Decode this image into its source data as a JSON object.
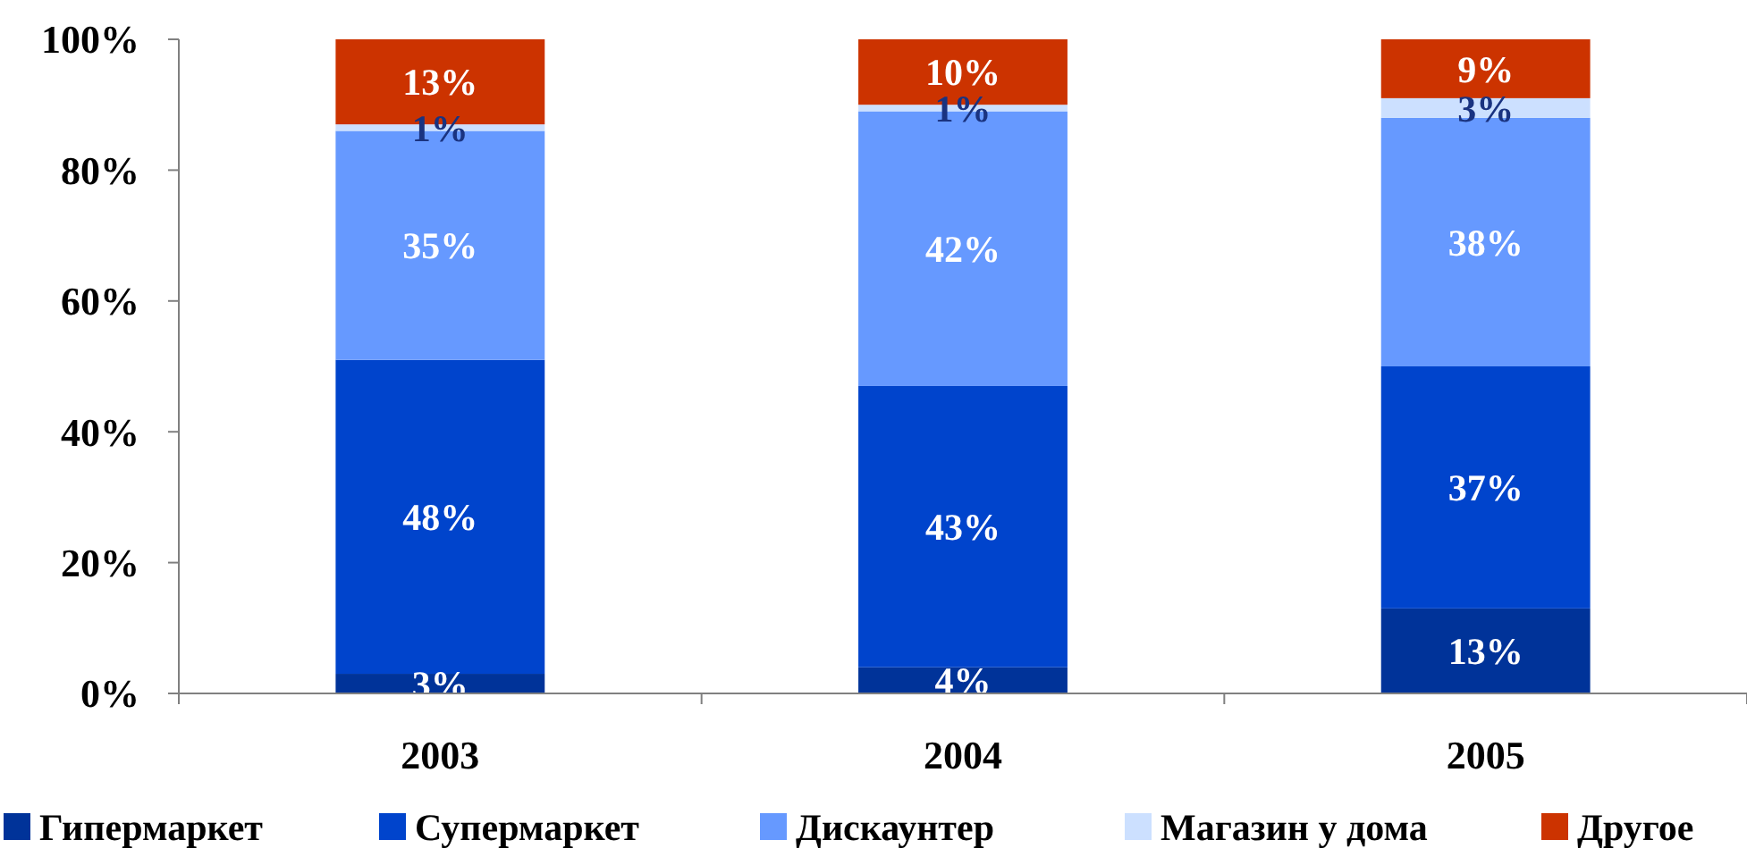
{
  "chart_data": {
    "type": "bar",
    "stacked": true,
    "categories": [
      "2003",
      "2004",
      "2005"
    ],
    "series": [
      {
        "name": "Гипермаркет",
        "color": "#003399",
        "values": [
          3,
          4,
          13
        ],
        "value_labels": [
          "3%",
          "4%",
          "13%"
        ]
      },
      {
        "name": "Супермаркет",
        "color": "#0044cc",
        "values": [
          48,
          43,
          37
        ],
        "value_labels": [
          "48%",
          "43%",
          "37%"
        ]
      },
      {
        "name": "Дискаунтер",
        "color": "#6699ff",
        "values": [
          35,
          42,
          38
        ],
        "value_labels": [
          "35%",
          "42%",
          "38%"
        ]
      },
      {
        "name": "Магазин у дома",
        "color": "#cce0ff",
        "values": [
          1,
          1,
          3
        ],
        "value_labels": [
          "1%",
          "1%",
          "3%"
        ]
      },
      {
        "name": "Другое",
        "color": "#cc3300",
        "values": [
          13,
          10,
          9
        ],
        "value_labels": [
          "13%",
          "10%",
          "9%"
        ]
      }
    ],
    "ylim": [
      0,
      100
    ],
    "yticks": [
      {
        "value": 0,
        "label": "0%"
      },
      {
        "value": 20,
        "label": "20%"
      },
      {
        "value": 40,
        "label": "40%"
      },
      {
        "value": 60,
        "label": "60%"
      },
      {
        "value": 80,
        "label": "80%"
      },
      {
        "value": 100,
        "label": "100%"
      }
    ],
    "grid": false,
    "legend": "bottom"
  }
}
